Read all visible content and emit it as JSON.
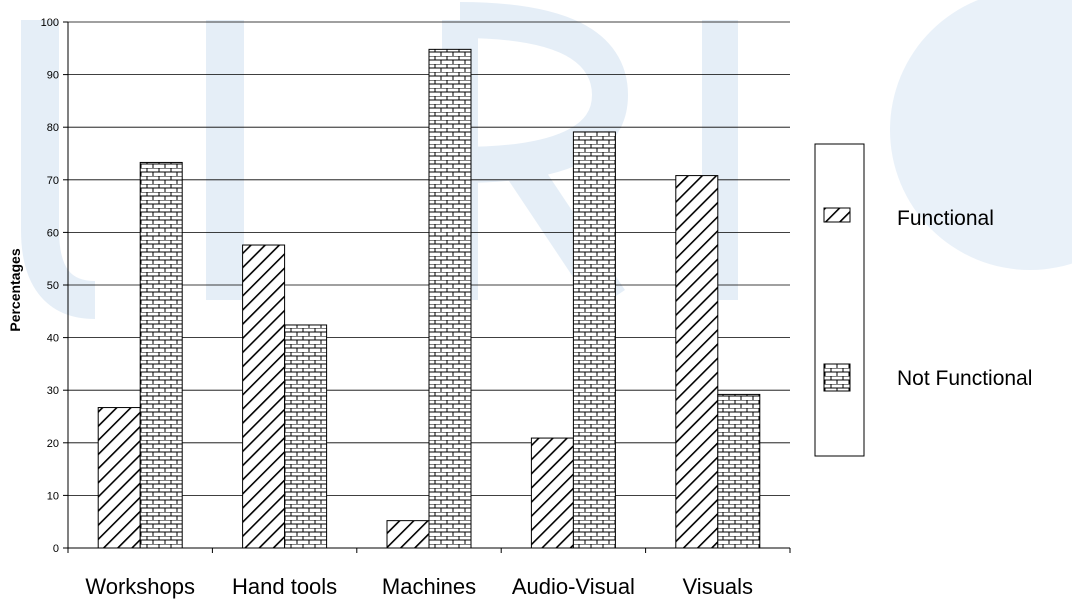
{
  "chart_data": {
    "type": "bar",
    "categories": [
      "Workshops",
      "Hand tools",
      "Machines",
      "Audio-Visual",
      "Visuals"
    ],
    "series": [
      {
        "name": "Functional",
        "values": [
          26.7,
          57.6,
          5.2,
          20.9,
          70.8
        ],
        "pattern": "diagonal-hatch"
      },
      {
        "name": "Not Functional",
        "values": [
          73.3,
          42.4,
          94.8,
          79.1,
          29.2
        ],
        "pattern": "brick"
      }
    ],
    "title": "",
    "xlabel": "",
    "ylabel": "Percentages",
    "ylim": [
      0,
      100
    ],
    "yticks": [
      0,
      10,
      20,
      30,
      40,
      50,
      60,
      70,
      80,
      90,
      100
    ],
    "grid": true,
    "legend_position": "right"
  },
  "colors": {
    "bar_stroke": "#000000",
    "bar_fill": "#ffffff",
    "grid": "#000000",
    "watermark": "#dce8f3"
  }
}
